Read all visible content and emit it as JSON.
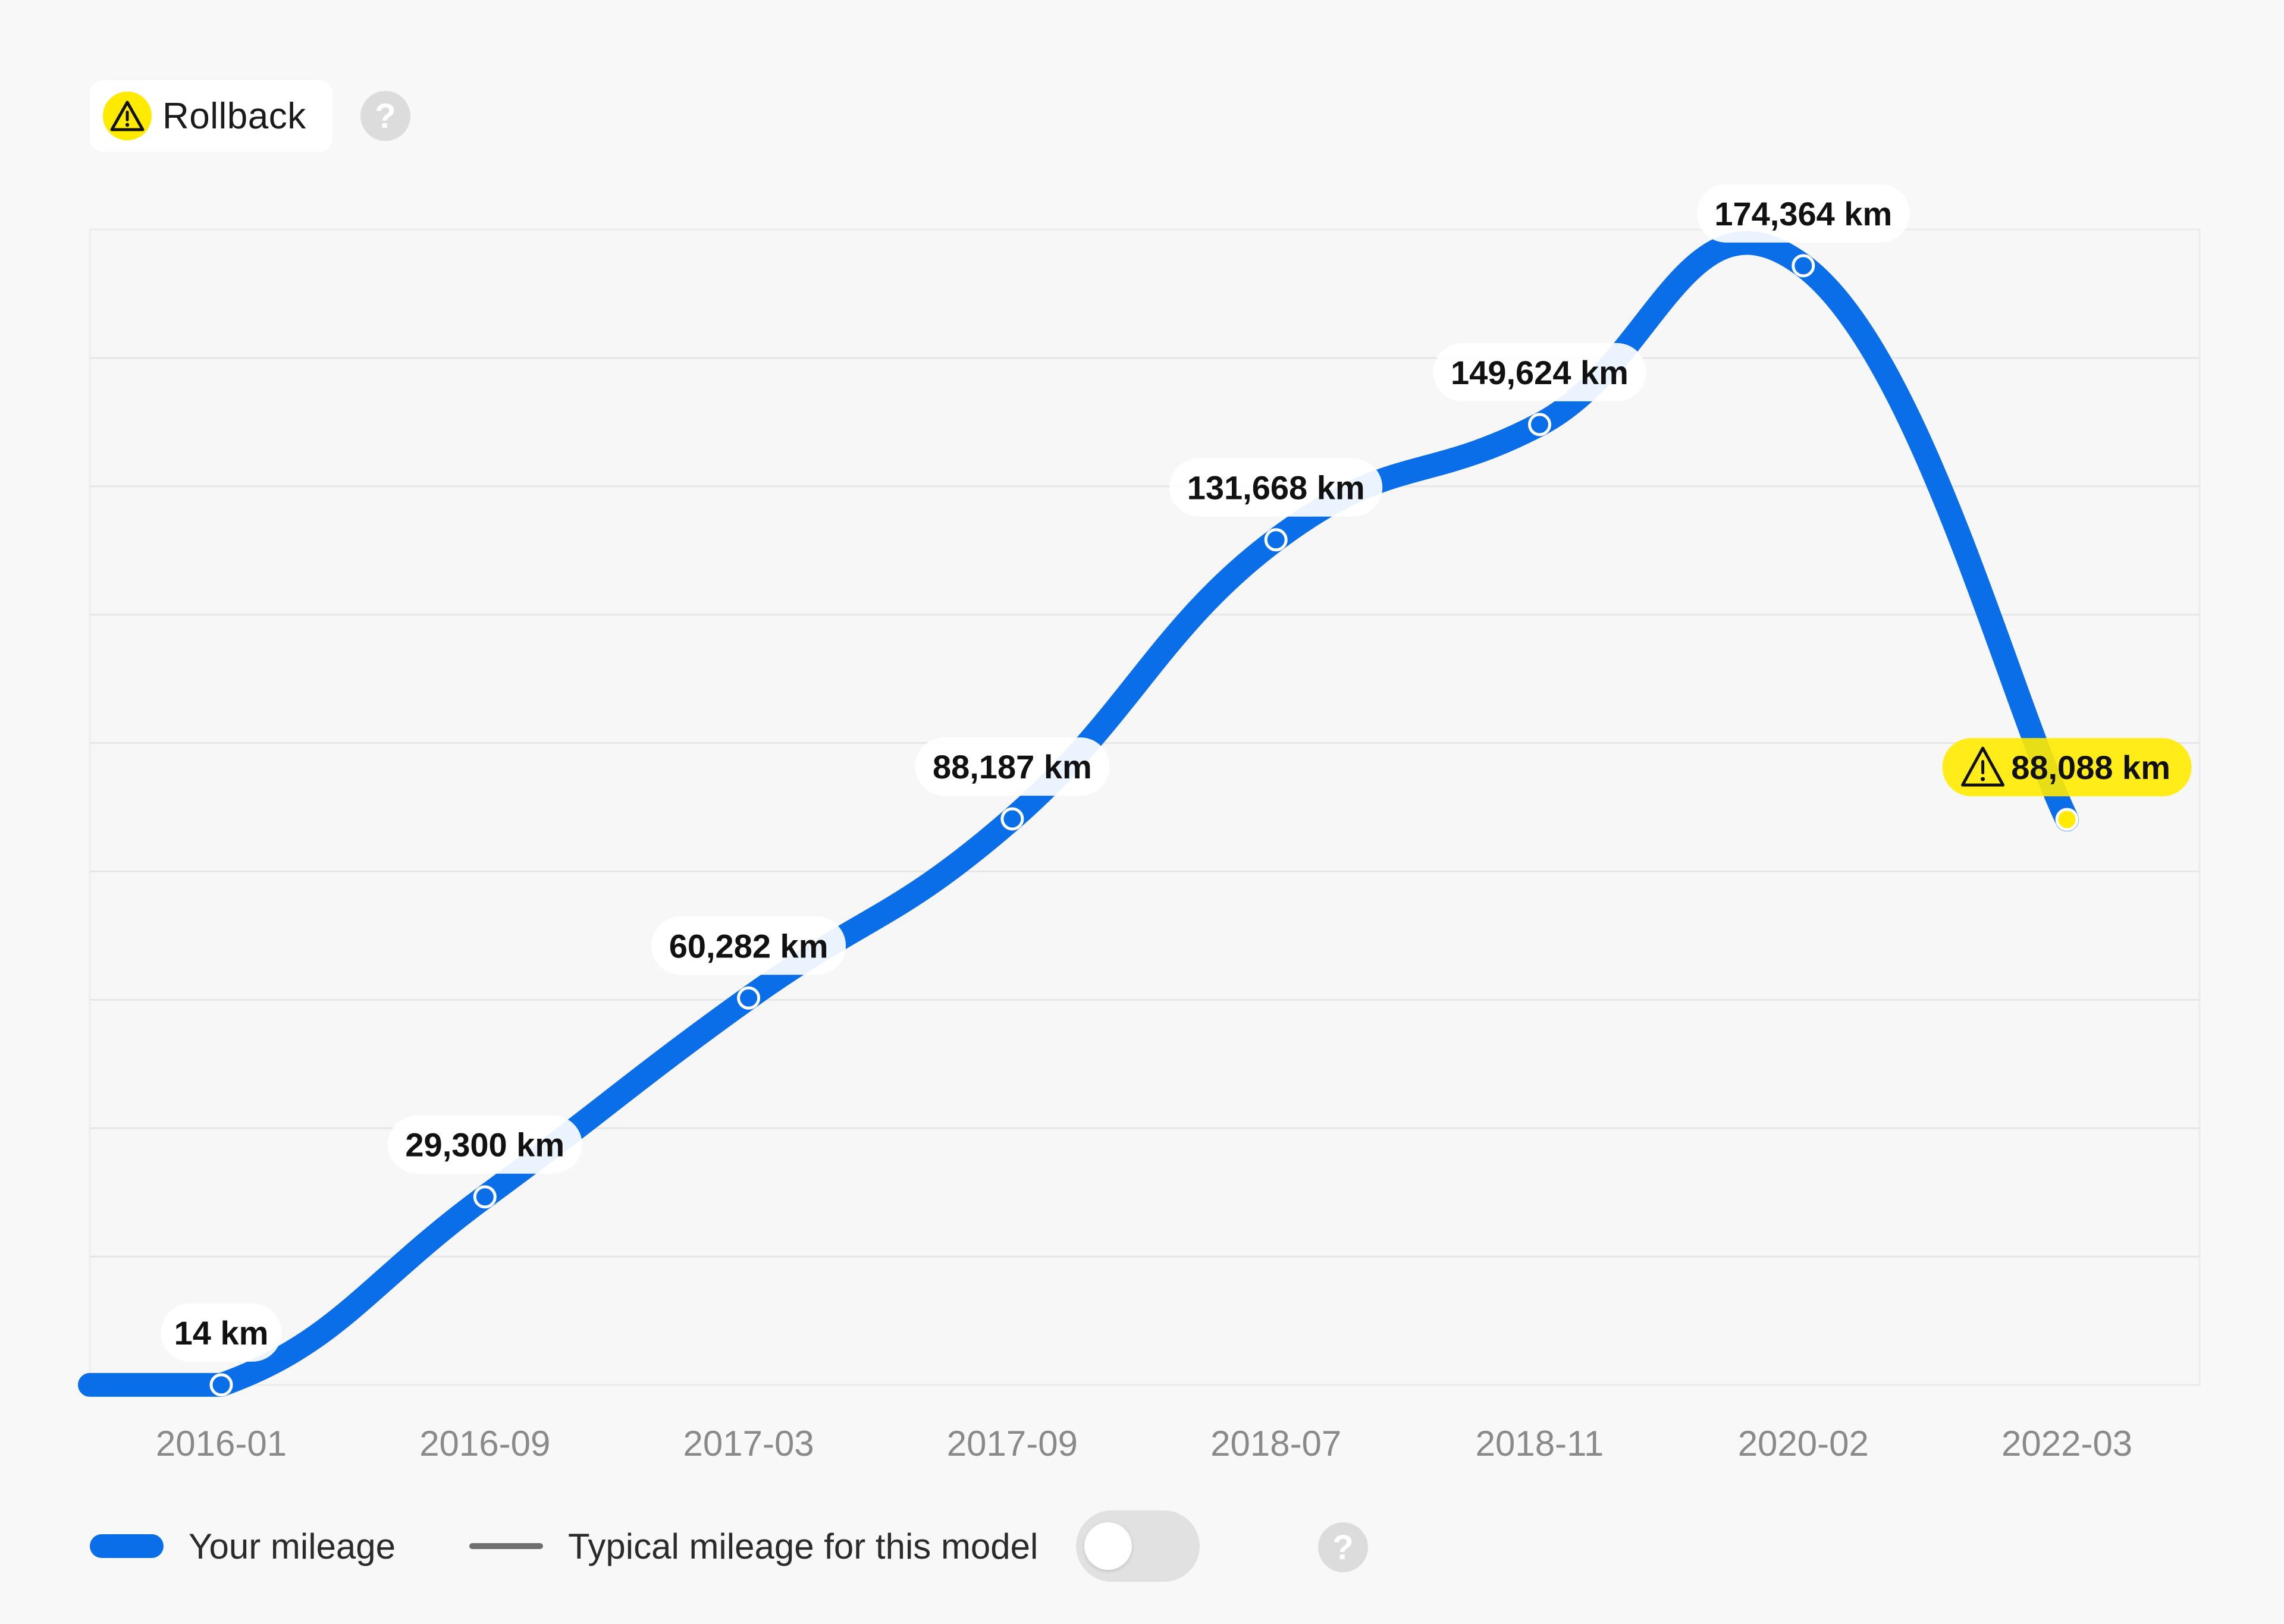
{
  "badge": {
    "label": "Rollback",
    "icon": "warning-icon",
    "help_icon": "help-icon"
  },
  "colors": {
    "line": "#0a6ee8",
    "warning": "#ffea00",
    "label_bg": "#ffffff",
    "grid": "#e6e6e6",
    "tick_text": "#8a8a8a"
  },
  "chart_data": {
    "type": "line",
    "title": "",
    "xlabel": "",
    "ylabel": "",
    "categories": [
      "2016-01",
      "2016-09",
      "2017-03",
      "2017-09",
      "2018-07",
      "2018-11",
      "2020-02",
      "2022-03"
    ],
    "series": [
      {
        "name": "Your mileage",
        "values": [
          14,
          29300,
          60282,
          88187,
          131668,
          149624,
          174364,
          88088
        ],
        "data_labels": [
          "14 km",
          "29,300 km",
          "60,282 km",
          "88,187 km",
          "131,668 km",
          "149,624 km",
          "174,364 km",
          "88,088 km"
        ],
        "flagged_index": 7
      }
    ],
    "ylim": [
      0,
      180000
    ],
    "grid": true,
    "legend": "bottom-left"
  },
  "legend": {
    "items": [
      {
        "label": "Your mileage"
      },
      {
        "label": "Typical mileage for this model"
      }
    ],
    "toggle_on": false,
    "help_icon": "help-icon"
  }
}
